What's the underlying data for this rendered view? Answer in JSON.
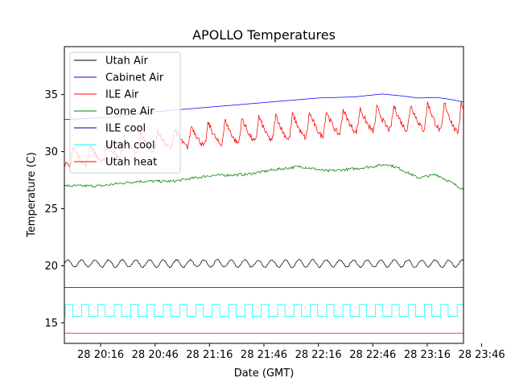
{
  "chart_data": {
    "type": "line",
    "title": "APOLLO Temperatures",
    "xlabel": "Date (GMT)",
    "ylabel": "Temperature (C)",
    "xlim": [
      0,
      220
    ],
    "ylim": [
      13.2,
      39.2
    ],
    "x_unit": "minutes after 28 19:56 GMT",
    "x_ticks": [
      {
        "x": 20,
        "label": "28 20:16"
      },
      {
        "x": 50,
        "label": "28 20:46"
      },
      {
        "x": 80,
        "label": "28 21:16"
      },
      {
        "x": 110,
        "label": "28 21:46"
      },
      {
        "x": 140,
        "label": "28 22:16"
      },
      {
        "x": 170,
        "label": "28 22:46"
      },
      {
        "x": 200,
        "label": "28 23:16"
      },
      {
        "x": 230,
        "label": "28 23:46"
      }
    ],
    "y_ticks": [
      15,
      20,
      25,
      30,
      35
    ],
    "legend_position": "top-left",
    "series": [
      {
        "name": "Utah Air",
        "color": "#000000",
        "generator": "sine",
        "base": 20.2,
        "amplitude": 0.32,
        "period": 7.5,
        "phase": 0,
        "values_note": "oscillates ~19.9 to 20.6 C"
      },
      {
        "name": "Cabinet Air",
        "color": "#0000ff",
        "generator": "interp",
        "points": [
          [
            0,
            32.8
          ],
          [
            25,
            33.0
          ],
          [
            50,
            33.5
          ],
          [
            80,
            33.9
          ],
          [
            110,
            34.3
          ],
          [
            140,
            34.7
          ],
          [
            160,
            34.8
          ],
          [
            175,
            35.05
          ],
          [
            185,
            34.9
          ],
          [
            195,
            34.7
          ],
          [
            205,
            34.75
          ],
          [
            212,
            34.6
          ],
          [
            220,
            34.35
          ]
        ]
      },
      {
        "name": "ILE Air",
        "color": "#ff0000",
        "generator": "sawtooth",
        "period": 9.3,
        "phase": -6.5,
        "noise": 0.25,
        "base_points": [
          [
            0,
            28.6
          ],
          [
            20,
            29.0
          ],
          [
            40,
            29.8
          ],
          [
            60,
            30.3
          ],
          [
            80,
            30.5
          ],
          [
            100,
            30.8
          ],
          [
            120,
            31.0
          ],
          [
            140,
            31.3
          ],
          [
            160,
            31.7
          ],
          [
            180,
            31.9
          ],
          [
            200,
            31.9
          ],
          [
            220,
            31.6
          ]
        ],
        "peak_points": [
          [
            0,
            30.3
          ],
          [
            20,
            30.8
          ],
          [
            40,
            31.6
          ],
          [
            60,
            32.0
          ],
          [
            80,
            32.6
          ],
          [
            100,
            33.0
          ],
          [
            120,
            33.3
          ],
          [
            140,
            33.5
          ],
          [
            160,
            33.8
          ],
          [
            180,
            34.0
          ],
          [
            200,
            34.3
          ],
          [
            220,
            34.4
          ]
        ]
      },
      {
        "name": "Dome Air",
        "color": "#008000",
        "generator": "interp",
        "noise": 0.12,
        "points": [
          [
            0,
            27.0
          ],
          [
            20,
            27.0
          ],
          [
            40,
            27.4
          ],
          [
            60,
            27.4
          ],
          [
            80,
            27.9
          ],
          [
            100,
            28.0
          ],
          [
            115,
            28.4
          ],
          [
            130,
            28.7
          ],
          [
            145,
            28.3
          ],
          [
            160,
            28.5
          ],
          [
            170,
            28.7
          ],
          [
            178,
            28.9
          ],
          [
            185,
            28.5
          ],
          [
            195,
            27.7
          ],
          [
            205,
            28.0
          ],
          [
            212,
            27.4
          ],
          [
            220,
            26.7
          ]
        ]
      },
      {
        "name": "ILE cool",
        "color": "#00008b",
        "generator": "constant",
        "value": 18.1
      },
      {
        "name": "Utah cool",
        "color": "#00ffff",
        "generator": "square",
        "low": 15.55,
        "high": 16.6,
        "period": 9,
        "duty": 0.45,
        "phase": 0.5
      },
      {
        "name": "Utah heat",
        "color": "#ff0000",
        "generator": "constant",
        "value": 14.1
      }
    ]
  }
}
